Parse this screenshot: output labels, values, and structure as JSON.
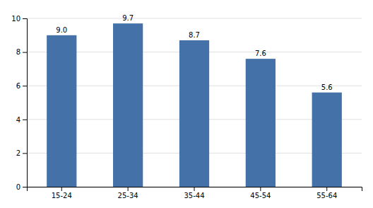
{
  "chart_data": {
    "type": "bar",
    "categories": [
      "15-24",
      "25-34",
      "35-44",
      "45-54",
      "55-64"
    ],
    "values": [
      9.0,
      9.7,
      8.7,
      7.6,
      5.6
    ],
    "value_labels": [
      "9.0",
      "9.7",
      "8.7",
      "7.6",
      "5.6"
    ],
    "color": "#4472a8",
    "ylim": [
      0,
      10
    ],
    "yticks": [
      0,
      2,
      4,
      6,
      8,
      10
    ],
    "grid": true,
    "data_labels": true
  }
}
